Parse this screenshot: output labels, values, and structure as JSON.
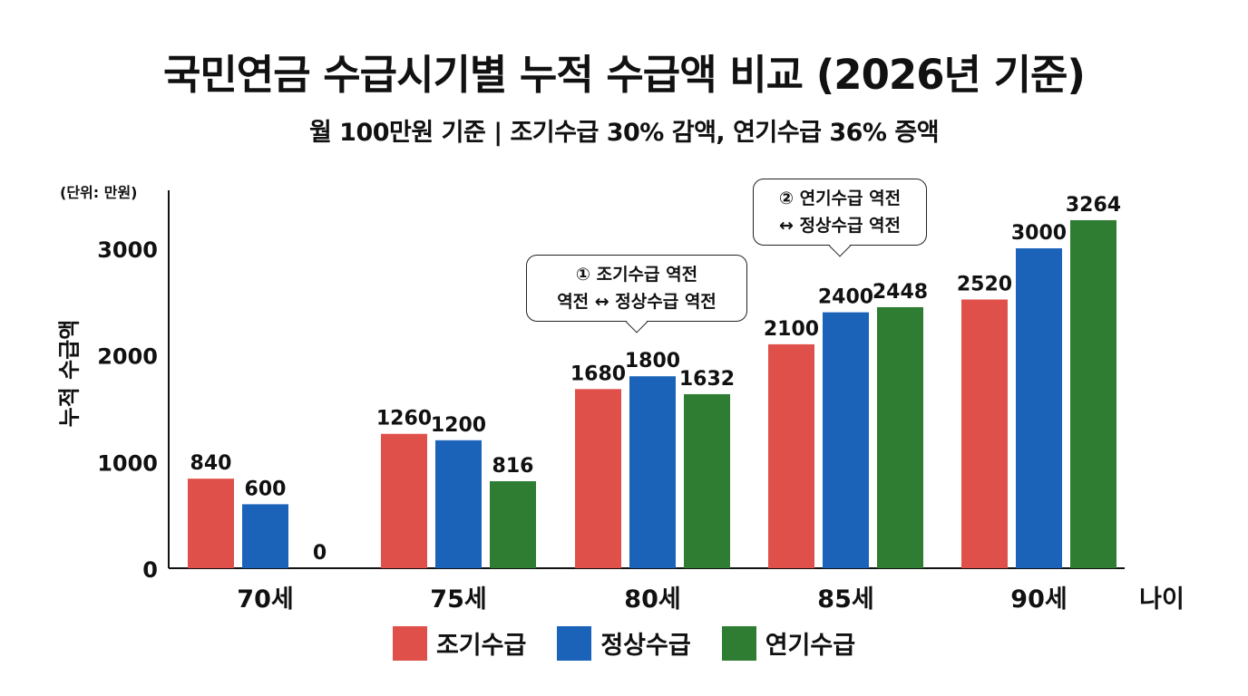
{
  "title": "국민연금 수급시기별 누적 수급액 비교 (2026년 기준)",
  "subtitle": "월 100만원 기준 | 조기수급 30% 감액, 연기수급 36% 증액",
  "callouts": [
    {
      "line1": "① 조기수급 역전",
      "line2": "역전 ↔ 정상수급 역전"
    },
    {
      "line1": "② 연기수급 역전",
      "line2": "↔ 정상수급 역전"
    }
  ],
  "chart_data": {
    "type": "bar",
    "unit_label": "(단위: 만원)",
    "xlabel": "나이",
    "ylabel": "누적 수급액",
    "categories": [
      "70세",
      "75세",
      "80세",
      "85세",
      "90세"
    ],
    "yticks": [
      0,
      1000,
      2000,
      3000
    ],
    "ylim": [
      0,
      3500
    ],
    "grid": false,
    "legend_position": "bottom",
    "series": [
      {
        "name": "조기수급",
        "color": "#e0504b",
        "values": [
          840,
          1260,
          1680,
          2100,
          2520
        ]
      },
      {
        "name": "정상수급",
        "color": "#1a63b8",
        "values": [
          600,
          1200,
          1800,
          2400,
          3000
        ]
      },
      {
        "name": "연기수급",
        "color": "#2e7d32",
        "values": [
          0,
          816,
          1632,
          2448,
          3264
        ]
      }
    ]
  }
}
